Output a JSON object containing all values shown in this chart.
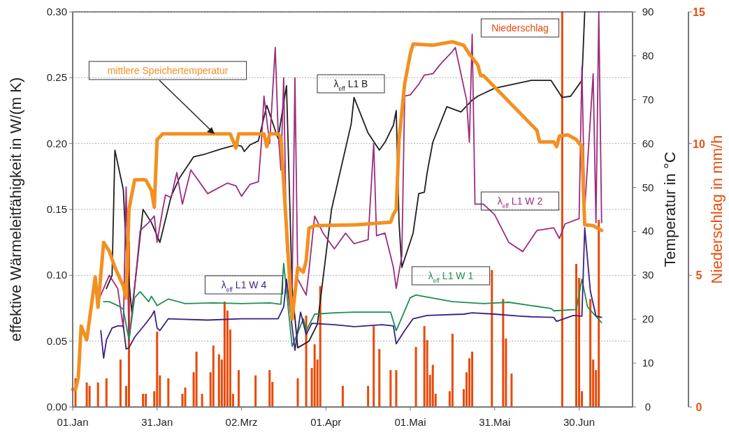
{
  "chart_data": {
    "type": "line",
    "ylabel": "effektive Wärmeleitfähigkeit in W/(m K)",
    "y2label": "Temperatur in °C",
    "y3label": "Niederschlag in mm/h",
    "xlim": [
      "--01-01",
      "--07-19"
    ],
    "xticks": [
      {
        "value": "--01-01",
        "label": "01.Jan"
      },
      {
        "value": "--01-31",
        "label": "31.Jan"
      },
      {
        "value": "--03-02",
        "label": "02.Mrz"
      },
      {
        "value": "--04-01",
        "label": "01.Apr"
      },
      {
        "value": "--05-01",
        "label": "01.Mai"
      },
      {
        "value": "--05-31",
        "label": "31.Mai"
      },
      {
        "value": "--06-30",
        "label": "30.Jun"
      }
    ],
    "ylim": [
      0,
      0.3
    ],
    "yticks": [
      {
        "value": 0,
        "label": "0.00"
      },
      {
        "value": 0.05,
        "label": "0.05"
      },
      {
        "value": 0.1,
        "label": "0.10"
      },
      {
        "value": 0.15,
        "label": "0.15"
      },
      {
        "value": 0.2,
        "label": "0.20"
      },
      {
        "value": 0.25,
        "label": "0.25"
      },
      {
        "value": 0.3,
        "label": "0.30"
      }
    ],
    "y2lim": [
      0,
      90
    ],
    "y2ticks": [
      0,
      10,
      20,
      30,
      40,
      50,
      60,
      70,
      80,
      90
    ],
    "y3lim": [
      0,
      15
    ],
    "y3ticks": [
      0,
      5,
      10,
      15
    ],
    "grid": "y",
    "series": [
      {
        "name": "Niederschlag",
        "type": "bar",
        "axis": "y3",
        "color": "#e84a0a",
        "x": [
          "--01-02",
          "--01-06",
          "--01-07",
          "--01-10",
          "--01-13",
          "--01-18",
          "--01-20",
          "--01-21",
          "--01-26",
          "--01-27",
          "--01-30",
          "--01-31",
          "--02-01",
          "--02-04",
          "--02-09",
          "--02-10",
          "--02-13",
          "--02-14",
          "--02-16",
          "--02-19",
          "--02-20",
          "--02-22",
          "--02-23",
          "--02-24",
          "--02-25",
          "--02-26",
          "--02-27",
          "--03-01",
          "--03-07",
          "--03-12",
          "--03-13",
          "--03-22",
          "--03-25",
          "--03-27",
          "--03-28",
          "--03-29",
          "--03-30",
          "--04-07",
          "--04-16",
          "--04-18",
          "--04-20",
          "--04-24",
          "--04-26",
          "--05-03",
          "--05-06",
          "--05-07",
          "--05-08",
          "--05-09",
          "--05-10",
          "--05-15",
          "--05-16",
          "--05-20",
          "--05-21",
          "--05-22",
          "--05-23",
          "--05-30",
          "--06-03",
          "--06-04",
          "--06-06",
          "--06-24",
          "--06-29",
          "--06-30",
          "--07-01",
          "--07-04",
          "--07-05",
          "--07-06",
          "--07-07"
        ],
        "values": [
          1.09,
          0.93,
          0.8,
          0.93,
          1.09,
          1.8,
          0.8,
          6.3,
          0.5,
          0.5,
          0.6,
          2.86,
          1.2,
          1.09,
          0.5,
          0.74,
          1.32,
          2.1,
          0.5,
          1.32,
          2.33,
          2.0,
          1.8,
          4.0,
          3.66,
          2.94,
          0.5,
          1.4,
          1.2,
          1.4,
          0.95,
          1.09,
          3.47,
          1.48,
          2.38,
          1.8,
          4.59,
          0.8,
          0.8,
          3.07,
          2.2,
          1.4,
          1.4,
          2.28,
          3.07,
          2.54,
          1.22,
          1.6,
          0.5,
          0.6,
          2.78,
          0.68,
          1.32,
          1.85,
          2.1,
          5.2,
          4.1,
          2.6,
          1.27,
          15,
          5.43,
          4.9,
          0.6,
          4.1,
          1.8,
          1.4,
          7.1
        ]
      },
      {
        "name": "λ$_{eff}$ L1 B",
        "color": "#1e1e1e",
        "x": [
          "--01-13",
          "--01-15",
          "--01-16",
          "--01-19",
          "--01-20",
          "--01-22",
          "--01-24",
          "--01-26",
          "--01-29",
          "--02-01",
          "--02-05",
          "--02-08",
          "--02-13",
          "--02-17",
          "--02-23",
          "--02-28",
          "--03-02",
          "--03-03",
          "--03-05",
          "--03-08",
          "--03-11",
          "--03-14",
          "--03-15",
          "--03-18",
          "--03-20",
          "--03-22",
          "--03-26",
          "--03-29",
          "--04-03",
          "--04-10",
          "--04-11",
          "--04-16",
          "--04-20",
          "--04-22",
          "--04-25",
          "--04-26",
          "--04-27",
          "--04-28",
          "--05-02",
          "--05-04",
          "--05-06",
          "--05-07",
          "--05-09",
          "--05-14",
          "--05-19",
          "--05-23",
          "--05-25",
          "--05-31",
          "--06-13",
          "--06-20",
          "--06-24",
          "--06-27",
          "--07-01",
          "--07-02"
        ],
        "values": [
          0.09,
          0.1,
          0.195,
          0.165,
          0.12,
          0.072,
          0.11,
          0.15,
          0.14,
          0.125,
          0.16,
          0.174,
          0.19,
          0.192,
          0.196,
          0.199,
          0.198,
          0.194,
          0.199,
          0.202,
          0.229,
          0.21,
          0.204,
          0.244,
          0.09,
          0.045,
          0.05,
          0.063,
          0.15,
          0.215,
          0.235,
          0.208,
          0.195,
          0.201,
          0.214,
          0.225,
          0.14,
          0.106,
          0.132,
          0.162,
          0.163,
          0.178,
          0.201,
          0.228,
          0.224,
          0.233,
          0.236,
          0.242,
          0.248,
          0.248,
          0.235,
          0.236,
          0.248,
          0.3
        ]
      },
      {
        "name": "λ$_{eff}$ L1 W 2",
        "color": "#9b2c7e",
        "x": [
          "--01-10",
          "--01-14",
          "--01-17",
          "--01-19",
          "--01-20",
          "--01-21",
          "--01-23",
          "--01-25",
          "--01-28",
          "--01-30",
          "--01-31",
          "--02-02",
          "--02-03",
          "--02-05",
          "--02-07",
          "--02-09",
          "--02-12",
          "--02-18",
          "--02-25",
          "--02-28",
          "--03-02",
          "--03-05",
          "--03-08",
          "--03-09",
          "--03-10",
          "--03-12",
          "--03-14",
          "--03-15",
          "--03-16",
          "--03-17",
          "--03-18",
          "--03-20",
          "--03-21",
          "--03-22",
          "--03-25",
          "--03-26",
          "--03-28",
          "--03-31",
          "--04-04",
          "--04-08",
          "--04-11",
          "--04-16",
          "--04-18",
          "--04-19",
          "--04-22",
          "--04-25",
          "--04-26",
          "--04-28",
          "--04-29",
          "--05-01",
          "--05-04",
          "--05-06",
          "--05-09",
          "--05-12",
          "--05-16",
          "--05-17",
          "--05-18",
          "--05-21",
          "--05-22",
          "--05-23",
          "--05-24",
          "--05-27",
          "--05-31",
          "--06-05",
          "--06-10",
          "--06-15",
          "--06-21",
          "--06-23",
          "--06-25",
          "--06-30",
          "--07-01",
          "--07-02",
          "--07-05",
          "--07-06",
          "--07-07",
          "--07-08"
        ],
        "values": [
          0.08,
          0.1,
          0.09,
          0.06,
          0.167,
          0.05,
          0.09,
          0.134,
          0.14,
          0.145,
          0.125,
          0.15,
          0.161,
          0.159,
          0.178,
          0.154,
          0.18,
          0.162,
          0.17,
          0.168,
          0.16,
          0.169,
          0.171,
          0.198,
          0.236,
          0.2,
          0.273,
          0.21,
          0.18,
          0.25,
          0.12,
          0.09,
          0.25,
          0.097,
          0.085,
          0.104,
          0.145,
          0.132,
          0.12,
          0.132,
          0.124,
          0.127,
          0.2,
          0.13,
          0.132,
          0.106,
          0.09,
          0.115,
          0.236,
          0.237,
          0.245,
          0.252,
          0.253,
          0.261,
          0.27,
          0.273,
          0.263,
          0.233,
          0.201,
          0.283,
          0.154,
          0.154,
          0.146,
          0.125,
          0.118,
          0.134,
          0.136,
          0.128,
          0.139,
          0.143,
          0.258,
          0.15,
          0.253,
          0.14,
          0.3,
          0.14
        ]
      },
      {
        "name": "λ$_{eff}$ L1 W 1",
        "color": "#1f8f50",
        "x": [
          "--01-12",
          "--01-14",
          "--01-18",
          "--01-19",
          "--01-21",
          "--01-23",
          "--01-25",
          "--01-28",
          "--01-29",
          "--01-31",
          "--02-04",
          "--02-10",
          "--02-20",
          "--03-02",
          "--03-12",
          "--03-16",
          "--03-17",
          "--03-20",
          "--03-24",
          "--03-25",
          "--03-28",
          "--04-04",
          "--04-11",
          "--04-21",
          "--04-24",
          "--04-26",
          "--05-01",
          "--05-03",
          "--05-16",
          "--05-27",
          "--06-05",
          "--06-20",
          "--06-21",
          "--06-29",
          "--07-01",
          "--07-03",
          "--07-08"
        ],
        "values": [
          0.08,
          0.08,
          0.076,
          0.074,
          0.051,
          0.083,
          0.0875,
          0.08,
          0.084,
          0.077,
          0.082,
          0.0785,
          0.079,
          0.0785,
          0.079,
          0.078,
          0.109,
          0.046,
          0.067,
          0.058,
          0.0705,
          0.0715,
          0.072,
          0.072,
          0.072,
          0.058,
          0.083,
          0.085,
          0.08,
          0.0785,
          0.0795,
          0.0748,
          0.073,
          0.074,
          0.097,
          0.076,
          0.064
        ]
      },
      {
        "name": "λ$_{eff}$ L1 W 4",
        "color": "#3b1f80",
        "x": [
          "--01-11",
          "--01-12",
          "--01-13",
          "--01-15",
          "--01-17",
          "--01-19",
          "--01-20",
          "--01-21",
          "--01-23",
          "--01-27",
          "--01-29",
          "--01-30",
          "--01-31",
          "--02-01",
          "--02-04",
          "--02-18",
          "--03-02",
          "--03-15",
          "--03-17",
          "--03-18",
          "--03-21",
          "--03-23",
          "--03-25",
          "--03-27",
          "--04-04",
          "--04-11",
          "--04-21",
          "--04-25",
          "--04-26",
          "--04-29",
          "--05-02",
          "--05-07",
          "--05-20",
          "--05-23",
          "--05-31",
          "--06-09",
          "--06-13",
          "--06-21",
          "--06-22",
          "--06-28",
          "--07-01",
          "--07-02",
          "--07-04",
          "--07-06",
          "--07-08"
        ],
        "values": [
          0.058,
          0.037,
          0.051,
          0.06,
          0.0615,
          0.0615,
          0.044,
          0.045,
          0.053,
          0.0635,
          0.069,
          0.073,
          0.06,
          0.058,
          0.067,
          0.066,
          0.067,
          0.067,
          0.076,
          0.097,
          0.043,
          0.072,
          0.055,
          0.0635,
          0.0625,
          0.061,
          0.0625,
          0.0615,
          0.048,
          0.058,
          0.067,
          0.0695,
          0.0705,
          0.0715,
          0.0705,
          0.069,
          0.0685,
          0.068,
          0.065,
          0.0695,
          0.069,
          0.136,
          0.088,
          0.069,
          0.068
        ]
      },
      {
        "name": "mittlere Speichertemperatur",
        "axis": "y2",
        "color": "#f39020",
        "x": [
          "--01-01",
          "--01-02",
          "--01-03",
          "--01-04",
          "--01-06",
          "--01-09",
          "--01-10",
          "--01-12",
          "--01-14",
          "--01-16",
          "--01-19",
          "--01-20",
          "--01-21",
          "--01-23",
          "--01-26",
          "--01-27",
          "--01-29",
          "--01-30",
          "--01-31",
          "--02-02",
          "--02-10",
          "--02-18",
          "--02-26",
          "--02-28",
          "--03-01",
          "--03-10",
          "--03-11",
          "--03-12",
          "--03-15",
          "--03-16",
          "--03-20",
          "--03-22",
          "--03-24",
          "--03-25",
          "--03-26",
          "--03-28",
          "--04-12",
          "--04-24",
          "--04-25",
          "--04-26",
          "--04-27",
          "--04-29",
          "--05-01",
          "--05-02",
          "--05-09",
          "--05-16",
          "--05-20",
          "--05-22",
          "--05-25",
          "--05-26",
          "--05-27",
          "--06-15",
          "--06-16",
          "--06-21",
          "--06-22",
          "--06-23",
          "--06-26",
          "--06-29",
          "--07-01",
          "--07-02",
          "--07-05",
          "--07-08"
        ],
        "values": [
          4,
          4,
          6.8,
          18.4,
          15.3,
          29.6,
          22.7,
          37.5,
          35.5,
          31.8,
          27.5,
          24.8,
          45,
          51.7,
          51.8,
          51.7,
          49.3,
          45.5,
          60.9,
          62.2,
          62.2,
          62.2,
          62.2,
          59,
          62.2,
          62.2,
          59.3,
          62.2,
          62.2,
          61.4,
          20,
          31.8,
          30.7,
          33.4,
          40.7,
          41.3,
          41.5,
          42.1,
          43.9,
          45,
          60.9,
          73.6,
          80.4,
          82.7,
          82.4,
          83.2,
          82.4,
          80.4,
          77.9,
          75.5,
          75.5,
          63,
          60.4,
          60.4,
          59.3,
          61.7,
          62,
          60.9,
          59.3,
          41.5,
          41.3,
          40.2
        ]
      }
    ]
  }
}
